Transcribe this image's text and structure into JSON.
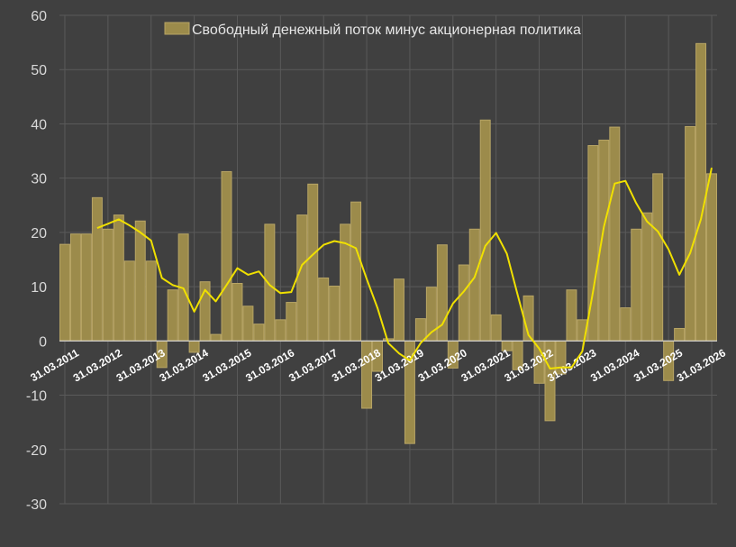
{
  "chart_data": {
    "type": "bar",
    "legend": {
      "label": "Свободный денежный поток минус акционерная политика",
      "position": "top-center"
    },
    "colors": {
      "background": "#404040",
      "bar_fill": "#9c8b4b",
      "bar_stroke": "#b8a565",
      "line": "#f0e000",
      "grid": "#5a5a5a",
      "zero_line": "#d9d9d9"
    },
    "ylim": [
      -30,
      60
    ],
    "yticks": [
      -30,
      -20,
      -10,
      0,
      10,
      20,
      30,
      40,
      50,
      60
    ],
    "grid": true,
    "x_tick_labels": [
      "31.03.2011",
      "31.03.2012",
      "31.03.2013",
      "31.03.2014",
      "31.03.2015",
      "31.03.2016",
      "31.03.2017",
      "31.03.2018",
      "31.03.2019",
      "31.03.2020",
      "31.03.2021",
      "31.03.2022",
      "31.03.2023",
      "31.03.2024",
      "31.03.2025",
      "31.03.2026"
    ],
    "bar_values": [
      17.8,
      19.7,
      19.7,
      26.4,
      20.6,
      23.2,
      14.7,
      22.1,
      14.7,
      -4.9,
      9.4,
      19.7,
      -2.1,
      10.9,
      1.2,
      31.2,
      10.6,
      6.4,
      3.1,
      21.5,
      3.9,
      7.1,
      23.2,
      28.9,
      11.6,
      10.1,
      21.5,
      25.6,
      -12.4,
      -5.6,
      0.4,
      11.4,
      -18.9,
      4.1,
      9.9,
      17.7,
      -5.0,
      14.0,
      20.6,
      40.7,
      4.8,
      -1.8,
      -5.3,
      8.3,
      -7.8,
      -14.7,
      -6.1,
      9.4,
      3.9,
      36.0,
      37.0,
      39.4,
      6.1,
      20.6,
      23.6,
      30.8,
      -7.3,
      2.3,
      39.5,
      54.8,
      30.8
    ],
    "moving_average": [
      null,
      null,
      null,
      20.8,
      21.6,
      22.4,
      21.3,
      20.0,
      18.5,
      11.6,
      10.3,
      9.7,
      5.4,
      9.4,
      7.3,
      10.3,
      13.4,
      12.2,
      12.8,
      10.3,
      8.8,
      9.0,
      14.0,
      15.9,
      17.7,
      18.4,
      18.0,
      17.1,
      11.4,
      6.1,
      -0.4,
      -2.3,
      -3.6,
      -0.4,
      1.6,
      3.0,
      6.9,
      9.1,
      11.7,
      17.5,
      19.9,
      16.1,
      8.5,
      1.1,
      -1.4,
      -5.1,
      -4.9,
      -4.9,
      -1.9,
      9.2,
      21.0,
      29.0,
      29.5,
      25.4,
      22.0,
      20.2,
      16.9,
      12.2,
      16.2,
      22.4,
      31.9
    ]
  }
}
